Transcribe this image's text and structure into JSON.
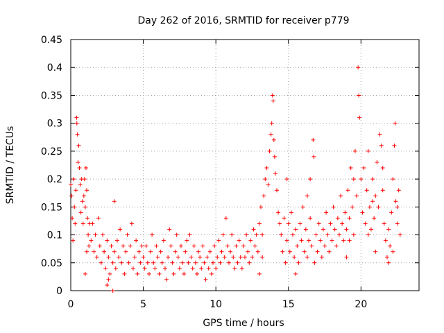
{
  "chart_data": {
    "type": "scatter",
    "title": "Day 262 of 2016, SRMTID for receiver p779",
    "xlabel": "GPS time / hours",
    "ylabel": "SRMTID / TECUs",
    "xlim": [
      0,
      24
    ],
    "ylim": [
      0,
      0.45
    ],
    "x_ticks": [
      0,
      5,
      10,
      15,
      20
    ],
    "x_tick_labels": [
      "0",
      "5",
      "10",
      "15",
      "20"
    ],
    "y_ticks": [
      0,
      0.05,
      0.1,
      0.15,
      0.2,
      0.25,
      0.3,
      0.35,
      0.4,
      0.45
    ],
    "y_tick_labels": [
      "0",
      "0.05",
      "0.1",
      "0.15",
      "0.2",
      "0.25",
      "0.3",
      "0.35",
      "0.4",
      "0.45"
    ],
    "grid": true,
    "marker": "plus",
    "series": [
      {
        "name": "SRMTID",
        "color": "#ff0000",
        "points": [
          [
            0.0,
            0.19
          ],
          [
            0.05,
            0.17
          ],
          [
            0.1,
            0.13
          ],
          [
            0.15,
            0.09
          ],
          [
            0.2,
            0.2
          ],
          [
            0.25,
            0.15
          ],
          [
            0.3,
            0.12
          ],
          [
            0.35,
            0.18
          ],
          [
            0.4,
            0.31
          ],
          [
            0.42,
            0.3
          ],
          [
            0.45,
            0.28
          ],
          [
            0.5,
            0.23
          ],
          [
            0.55,
            0.26
          ],
          [
            0.6,
            0.22
          ],
          [
            0.65,
            0.19
          ],
          [
            0.7,
            0.14
          ],
          [
            0.75,
            0.2
          ],
          [
            0.8,
            0.16
          ],
          [
            0.85,
            0.12
          ],
          [
            0.9,
            0.17
          ],
          [
            0.95,
            0.2
          ],
          [
            1.0,
            0.15
          ],
          [
            1.05,
            0.22
          ],
          [
            1.1,
            0.18
          ],
          [
            1.15,
            0.13
          ],
          [
            1.2,
            0.1
          ],
          [
            1.25,
            0.08
          ],
          [
            1.3,
            0.12
          ],
          [
            1.0,
            0.03
          ],
          [
            1.1,
            0.07
          ],
          [
            1.4,
            0.09
          ],
          [
            1.5,
            0.12
          ],
          [
            1.6,
            0.07
          ],
          [
            1.7,
            0.1
          ],
          [
            1.8,
            0.06
          ],
          [
            1.9,
            0.13
          ],
          [
            2.0,
            0.08
          ],
          [
            2.1,
            0.05
          ],
          [
            2.2,
            0.1
          ],
          [
            2.3,
            0.07
          ],
          [
            2.4,
            0.04
          ],
          [
            2.5,
            0.09
          ],
          [
            2.6,
            0.06
          ],
          [
            2.7,
            0.03
          ],
          [
            2.8,
            0.08
          ],
          [
            2.9,
            0.05
          ],
          [
            3.0,
            0.07
          ],
          [
            3.0,
            0.16
          ],
          [
            3.1,
            0.04
          ],
          [
            3.2,
            0.09
          ],
          [
            3.3,
            0.06
          ],
          [
            3.4,
            0.11
          ],
          [
            3.5,
            0.05
          ],
          [
            3.6,
            0.08
          ],
          [
            3.7,
            0.03
          ],
          [
            3.8,
            0.07
          ],
          [
            3.9,
            0.1
          ],
          [
            4.0,
            0.05
          ],
          [
            4.1,
            0.08
          ],
          [
            4.2,
            0.12
          ],
          [
            4.3,
            0.04
          ],
          [
            4.4,
            0.06
          ],
          [
            4.5,
            0.09
          ],
          [
            4.6,
            0.03
          ],
          [
            4.7,
            0.07
          ],
          [
            4.8,
            0.05
          ],
          [
            4.9,
            0.08
          ],
          [
            2.5,
            0.01
          ],
          [
            2.9,
            0.0
          ],
          [
            2.6,
            0.02
          ],
          [
            5.0,
            0.06
          ],
          [
            5.1,
            0.04
          ],
          [
            5.2,
            0.08
          ],
          [
            5.3,
            0.05
          ],
          [
            5.4,
            0.03
          ],
          [
            5.5,
            0.07
          ],
          [
            5.6,
            0.1
          ],
          [
            5.7,
            0.05
          ],
          [
            5.8,
            0.04
          ],
          [
            5.9,
            0.08
          ],
          [
            6.0,
            0.06
          ],
          [
            6.1,
            0.03
          ],
          [
            6.2,
            0.07
          ],
          [
            6.3,
            0.05
          ],
          [
            6.4,
            0.09
          ],
          [
            6.5,
            0.04
          ],
          [
            6.6,
            0.02
          ],
          [
            6.7,
            0.06
          ],
          [
            6.8,
            0.11
          ],
          [
            6.9,
            0.08
          ],
          [
            7.0,
            0.05
          ],
          [
            7.1,
            0.03
          ],
          [
            7.2,
            0.07
          ],
          [
            7.3,
            0.1
          ],
          [
            7.4,
            0.06
          ],
          [
            7.5,
            0.04
          ],
          [
            7.6,
            0.08
          ],
          [
            7.7,
            0.05
          ],
          [
            7.8,
            0.03
          ],
          [
            7.9,
            0.07
          ],
          [
            8.0,
            0.09
          ],
          [
            8.1,
            0.05
          ],
          [
            8.2,
            0.1
          ],
          [
            8.3,
            0.06
          ],
          [
            8.4,
            0.04
          ],
          [
            8.5,
            0.08
          ],
          [
            8.6,
            0.05
          ],
          [
            8.7,
            0.03
          ],
          [
            8.8,
            0.07
          ],
          [
            8.9,
            0.06
          ],
          [
            9.0,
            0.04
          ],
          [
            9.1,
            0.08
          ],
          [
            9.2,
            0.05
          ],
          [
            9.3,
            0.02
          ],
          [
            9.4,
            0.06
          ],
          [
            9.5,
            0.04
          ],
          [
            9.6,
            0.07
          ],
          [
            9.7,
            0.03
          ],
          [
            9.8,
            0.05
          ],
          [
            9.9,
            0.08
          ],
          [
            10.0,
            0.04
          ],
          [
            10.1,
            0.06
          ],
          [
            10.2,
            0.09
          ],
          [
            10.3,
            0.05
          ],
          [
            10.4,
            0.07
          ],
          [
            10.5,
            0.1
          ],
          [
            10.6,
            0.06
          ],
          [
            10.7,
            0.13
          ],
          [
            10.8,
            0.08
          ],
          [
            10.9,
            0.05
          ],
          [
            11.0,
            0.07
          ],
          [
            11.1,
            0.1
          ],
          [
            11.2,
            0.06
          ],
          [
            11.3,
            0.04
          ],
          [
            11.4,
            0.08
          ],
          [
            11.5,
            0.05
          ],
          [
            11.6,
            0.09
          ],
          [
            11.7,
            0.06
          ],
          [
            11.8,
            0.04
          ],
          [
            11.9,
            0.08
          ],
          [
            12.0,
            0.06
          ],
          [
            12.1,
            0.1
          ],
          [
            12.2,
            0.07
          ],
          [
            12.3,
            0.05
          ],
          [
            12.4,
            0.09
          ],
          [
            12.5,
            0.06
          ],
          [
            12.6,
            0.11
          ],
          [
            12.7,
            0.08
          ],
          [
            12.8,
            0.1
          ],
          [
            12.9,
            0.07
          ],
          [
            13.0,
            0.12
          ],
          [
            13.1,
            0.15
          ],
          [
            13.2,
            0.1
          ],
          [
            13.3,
            0.17
          ],
          [
            13.4,
            0.2
          ],
          [
            13.5,
            0.22
          ],
          [
            13.6,
            0.19
          ],
          [
            13.7,
            0.25
          ],
          [
            13.8,
            0.28
          ],
          [
            13.85,
            0.3
          ],
          [
            13.9,
            0.35
          ],
          [
            13.95,
            0.34
          ],
          [
            14.0,
            0.27
          ],
          [
            14.05,
            0.24
          ],
          [
            14.1,
            0.21
          ],
          [
            14.2,
            0.18
          ],
          [
            14.3,
            0.14
          ],
          [
            14.4,
            0.12
          ],
          [
            13.0,
            0.03
          ],
          [
            13.2,
            0.06
          ],
          [
            14.5,
            0.1
          ],
          [
            14.6,
            0.07
          ],
          [
            14.7,
            0.13
          ],
          [
            14.8,
            0.05
          ],
          [
            14.9,
            0.09
          ],
          [
            15.0,
            0.12
          ],
          [
            15.1,
            0.07
          ],
          [
            15.2,
            0.14
          ],
          [
            15.3,
            0.1
          ],
          [
            15.4,
            0.06
          ],
          [
            15.5,
            0.11
          ],
          [
            15.6,
            0.08
          ],
          [
            15.7,
            0.05
          ],
          [
            15.8,
            0.12
          ],
          [
            15.9,
            0.09
          ],
          [
            16.0,
            0.15
          ],
          [
            16.1,
            0.07
          ],
          [
            16.2,
            0.11
          ],
          [
            16.3,
            0.06
          ],
          [
            16.4,
            0.09
          ],
          [
            16.5,
            0.13
          ],
          [
            16.6,
            0.08
          ],
          [
            16.7,
            0.27
          ],
          [
            16.75,
            0.24
          ],
          [
            16.8,
            0.05
          ],
          [
            16.9,
            0.1
          ],
          [
            17.0,
            0.07
          ],
          [
            17.1,
            0.12
          ],
          [
            17.2,
            0.09
          ],
          [
            17.3,
            0.06
          ],
          [
            17.4,
            0.11
          ],
          [
            17.5,
            0.08
          ],
          [
            17.6,
            0.14
          ],
          [
            17.7,
            0.1
          ],
          [
            17.8,
            0.07
          ],
          [
            17.9,
            0.12
          ],
          [
            18.0,
            0.09
          ],
          [
            18.1,
            0.15
          ],
          [
            18.2,
            0.11
          ],
          [
            18.3,
            0.08
          ],
          [
            18.4,
            0.13
          ],
          [
            18.5,
            0.1
          ],
          [
            18.6,
            0.17
          ],
          [
            18.7,
            0.12
          ],
          [
            18.8,
            0.09
          ],
          [
            18.9,
            0.14
          ],
          [
            16.5,
            0.2
          ],
          [
            16.3,
            0.17
          ],
          [
            15.5,
            0.03
          ],
          [
            14.9,
            0.2
          ],
          [
            19.0,
            0.11
          ],
          [
            19.1,
            0.18
          ],
          [
            19.2,
            0.13
          ],
          [
            19.3,
            0.22
          ],
          [
            19.4,
            0.15
          ],
          [
            19.5,
            0.1
          ],
          [
            19.6,
            0.25
          ],
          [
            19.7,
            0.17
          ],
          [
            19.8,
            0.4
          ],
          [
            19.85,
            0.35
          ],
          [
            19.9,
            0.31
          ],
          [
            20.0,
            0.2
          ],
          [
            20.1,
            0.14
          ],
          [
            20.2,
            0.22
          ],
          [
            20.3,
            0.12
          ],
          [
            20.4,
            0.18
          ],
          [
            20.5,
            0.25
          ],
          [
            20.6,
            0.15
          ],
          [
            20.7,
            0.11
          ],
          [
            20.8,
            0.2
          ],
          [
            20.9,
            0.13
          ],
          [
            21.0,
            0.17
          ],
          [
            21.1,
            0.23
          ],
          [
            21.2,
            0.15
          ],
          [
            21.3,
            0.28
          ],
          [
            21.4,
            0.26
          ],
          [
            21.5,
            0.18
          ],
          [
            21.6,
            0.12
          ],
          [
            21.7,
            0.09
          ],
          [
            21.8,
            0.06
          ],
          [
            21.9,
            0.11
          ],
          [
            22.0,
            0.08
          ],
          [
            22.1,
            0.14
          ],
          [
            22.2,
            0.2
          ],
          [
            22.3,
            0.26
          ],
          [
            22.35,
            0.3
          ],
          [
            22.4,
            0.16
          ],
          [
            22.5,
            0.12
          ],
          [
            22.6,
            0.18
          ],
          [
            22.7,
            0.1
          ],
          [
            19.0,
            0.06
          ],
          [
            19.5,
            0.2
          ],
          [
            20.5,
            0.1
          ],
          [
            21.5,
            0.22
          ],
          [
            22.5,
            0.15
          ],
          [
            19.2,
            0.09
          ],
          [
            21.0,
            0.07
          ],
          [
            21.9,
            0.05
          ],
          [
            22.2,
            0.07
          ],
          [
            20.8,
            0.16
          ]
        ]
      }
    ]
  }
}
